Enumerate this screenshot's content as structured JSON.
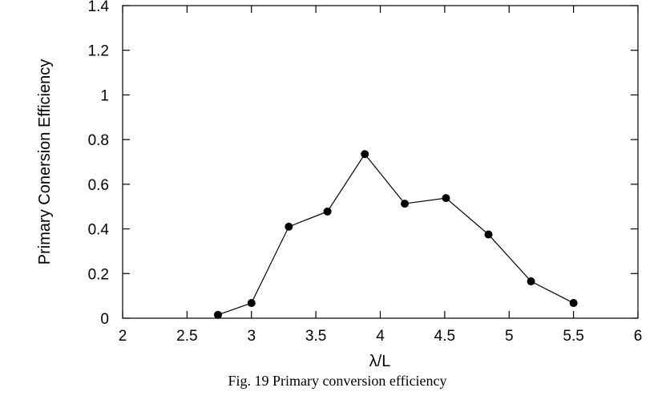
{
  "chart_data": {
    "type": "line",
    "title": "",
    "xlabel": "λ/L",
    "ylabel": "Primary Conersion Efficiency",
    "caption": "Fig. 19  Primary conversion efficiency",
    "xlim": [
      2,
      6
    ],
    "ylim": [
      0,
      1.4
    ],
    "x_ticks": [
      2,
      2.5,
      3,
      3.5,
      4,
      4.5,
      5,
      5.5,
      6
    ],
    "x_tick_labels": [
      "2",
      "2.5",
      "3",
      "3.5",
      "4",
      "4.5",
      "5",
      "5.5",
      "6"
    ],
    "y_ticks": [
      0,
      0.2,
      0.4,
      0.6,
      0.8,
      1,
      1.2,
      1.4
    ],
    "y_tick_labels": [
      "0",
      "0.2",
      "0.4",
      "0.6",
      "0.8",
      "1",
      "1.2",
      "1.4"
    ],
    "grid": false,
    "legend": "none",
    "series": [
      {
        "x": [
          2.74,
          3.0,
          3.29,
          3.59,
          3.88,
          4.19,
          4.51,
          4.84,
          5.17,
          5.5
        ],
        "y": [
          0.015,
          0.068,
          0.41,
          0.478,
          0.735,
          0.513,
          0.538,
          0.375,
          0.165,
          0.068
        ],
        "color": "#000000"
      }
    ]
  }
}
